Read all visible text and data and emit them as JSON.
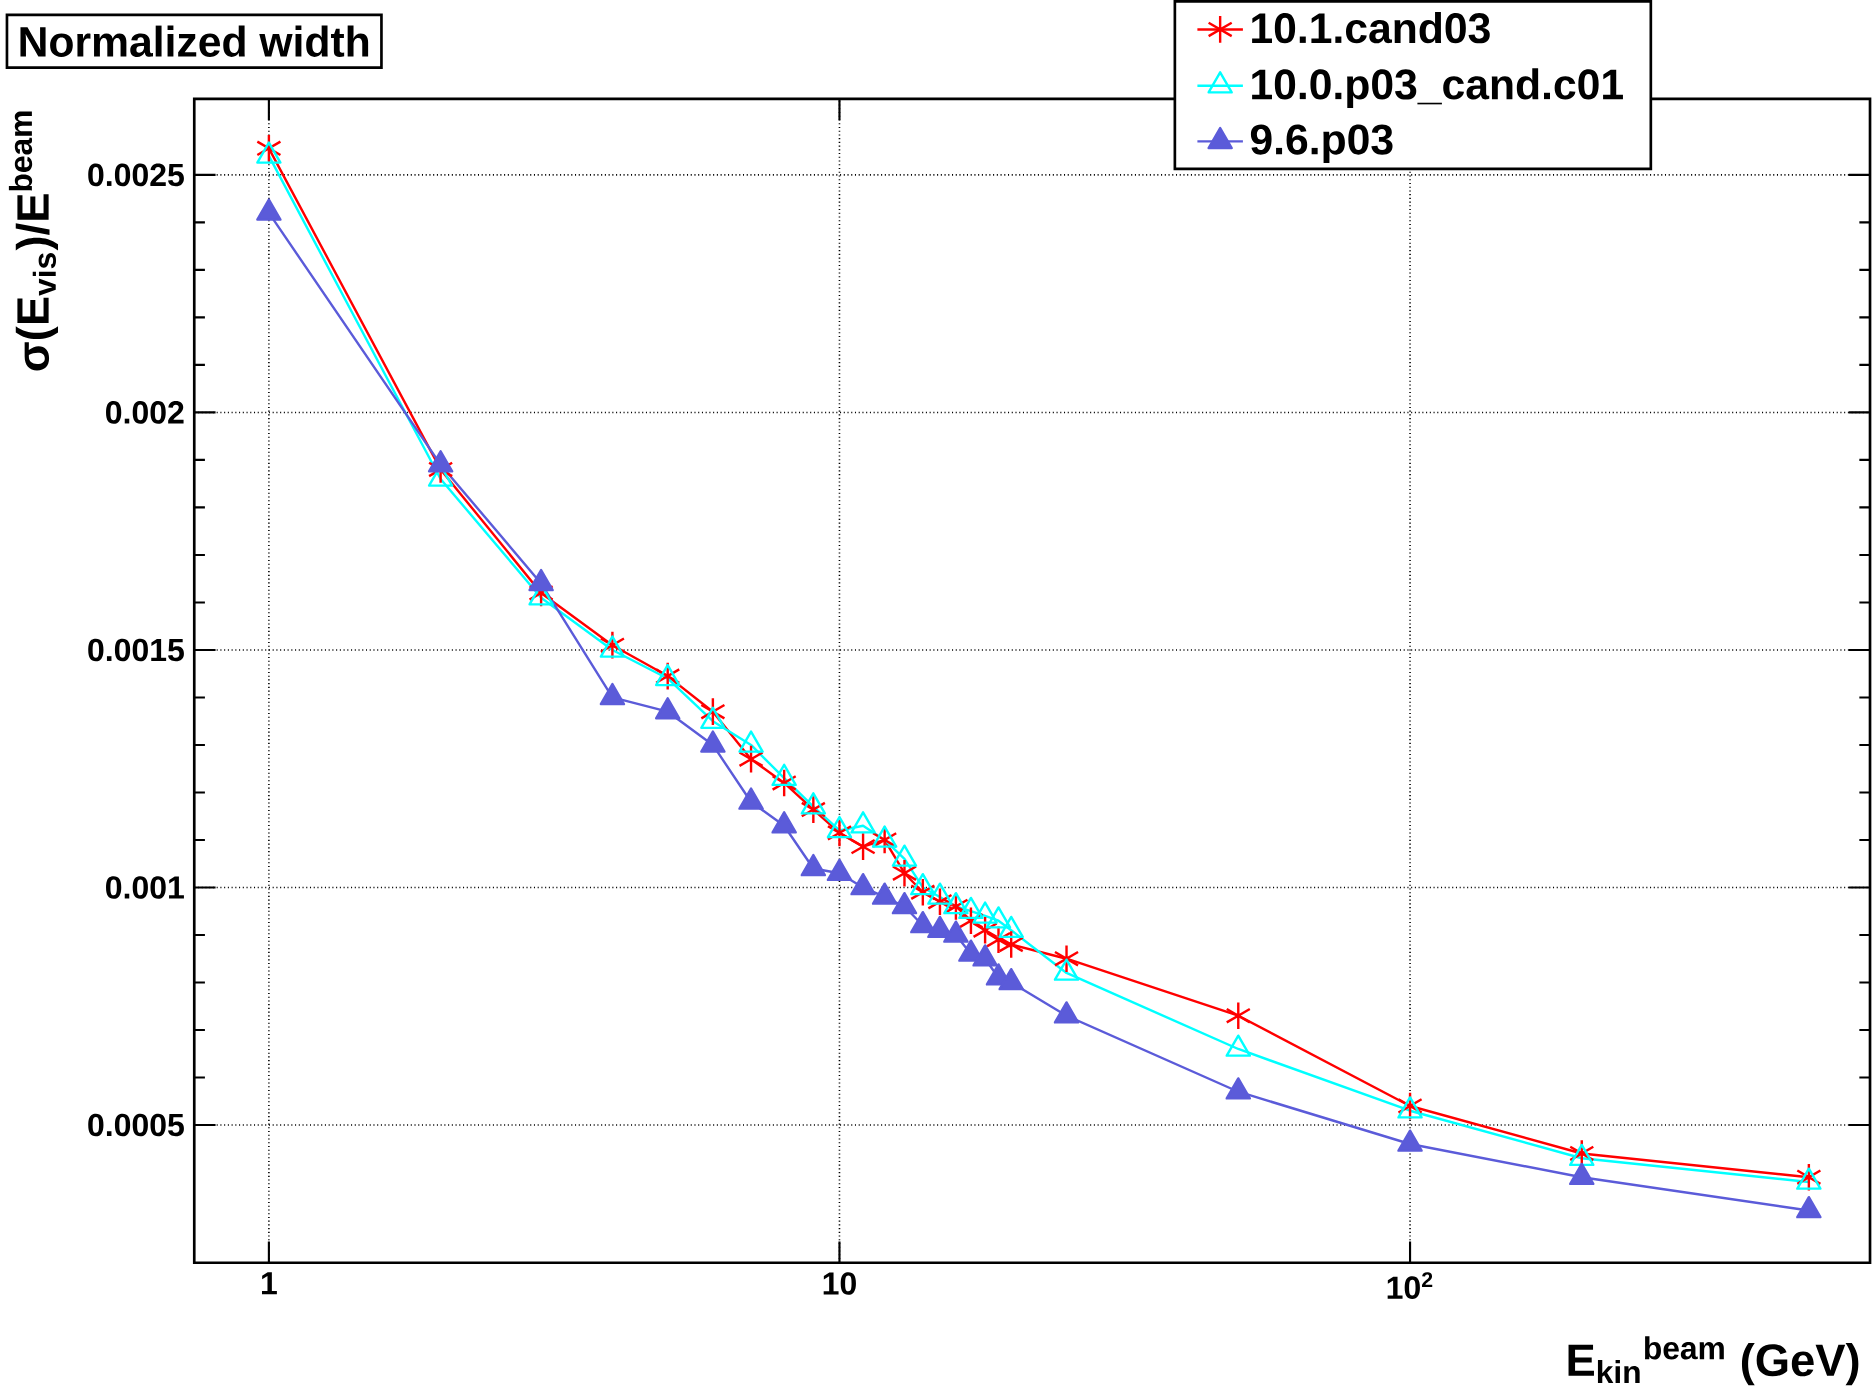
{
  "chart_data": {
    "type": "line",
    "title": "Normalized width",
    "xlabel": "E$_{kin}$$^{beam}$ (GeV)",
    "ylabel": "σ(E$_{vis}$)/E$^{beam}$",
    "x": [
      1,
      2,
      3,
      4,
      5,
      6,
      7,
      8,
      9,
      10,
      11,
      12,
      13,
      14,
      15,
      16,
      17,
      18,
      19,
      20,
      25,
      50,
      100,
      200,
      500
    ],
    "series": [
      {
        "name": "10.1.cand03",
        "color": "#ff0000",
        "marker": "cross",
        "values": [
          0.002556,
          0.00188,
          0.00162,
          0.00151,
          0.001445,
          0.00137,
          0.00127,
          0.00122,
          0.001164,
          0.001115,
          0.001086,
          0.0011,
          0.00103,
          0.00099,
          0.00097,
          0.00096,
          0.00093,
          0.00091,
          0.00089,
          0.00088,
          0.00085,
          0.00073,
          0.00054,
          0.00044,
          0.00039
        ]
      },
      {
        "name": "10.0.p03_cand.c01",
        "color": "#00ffff",
        "marker": "triangle",
        "values": [
          0.00254,
          0.00186,
          0.00161,
          0.0015,
          0.00144,
          0.00135,
          0.0013,
          0.00123,
          0.00117,
          0.00112,
          0.00113,
          0.0011,
          0.00106,
          0.001,
          0.00098,
          0.00096,
          0.00095,
          0.00094,
          0.00093,
          0.00091,
          0.00082,
          0.00066,
          0.00053,
          0.00043,
          0.00038
        ]
      },
      {
        "name": "9.6.p03",
        "color": "#5b5bd9",
        "marker": "triangle_filled",
        "values": [
          0.00242,
          0.00189,
          0.00164,
          0.0014,
          0.00137,
          0.0013,
          0.00118,
          0.00113,
          0.00104,
          0.00103,
          0.001,
          0.00098,
          0.00096,
          0.00092,
          0.00091,
          0.0009,
          0.00086,
          0.00085,
          0.00081,
          0.0008,
          0.00073,
          0.00057,
          0.00046,
          0.00039,
          0.00032
        ]
      }
    ],
    "log": "x",
    "xlim": [
      0.74,
      640
    ],
    "ylim": [
      0.00021,
      0.00266
    ],
    "xticks": [
      1,
      10,
      {
        "value": 100,
        "label": "10$^{2}$"
      }
    ],
    "yticks": [
      0.0005,
      0.001,
      0.0015,
      0.002,
      0.0025
    ],
    "grid": true,
    "legend": "top right",
    "line_style": "solid"
  }
}
